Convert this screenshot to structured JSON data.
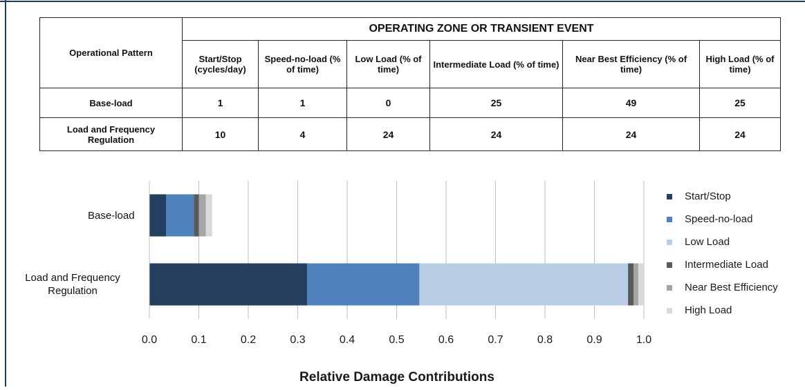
{
  "table": {
    "row_header": "Operational Pattern",
    "group_header": "OPERATING  ZONE OR TRANSIENT EVENT",
    "columns": [
      "Start/Stop (cycles/day)",
      "Speed-no-load (% of time)",
      "Low Load (% of time)",
      "Intermediate Load (% of time)",
      "Near Best Efficiency (% of time)",
      "High Load (% of time)"
    ],
    "rows": [
      [
        "Base-load",
        1,
        1,
        0,
        25,
        49,
        25
      ],
      [
        "Load and Frequency Regulation",
        10,
        4,
        24,
        24,
        24,
        24
      ]
    ]
  },
  "chart_data": {
    "type": "bar",
    "orientation": "horizontal",
    "stacked": true,
    "categories": [
      "Base-load",
      "Load and Frequency Regulation"
    ],
    "series": [
      {
        "name": "Start/Stop",
        "color": "#243f60",
        "values": [
          0.034,
          0.319
        ]
      },
      {
        "name": "Speed-no-load",
        "color": "#4f81bd",
        "values": [
          0.056,
          0.227
        ]
      },
      {
        "name": "Low Load",
        "color": "#b9cde5",
        "values": [
          0,
          0.422
        ]
      },
      {
        "name": "Intermediate Load",
        "color": "#595959",
        "values": [
          0.01,
          0.011
        ]
      },
      {
        "name": "Near Best Efficiency",
        "color": "#a6a6a6",
        "values": [
          0.014,
          0.01
        ]
      },
      {
        "name": "High Load",
        "color": "#d9d9d9",
        "values": [
          0.013,
          0.01
        ]
      }
    ],
    "xlabel": "Relative Damage Contributions",
    "xlim": [
      0,
      1
    ],
    "xticks": [
      {
        "value": 0,
        "label": "0.0"
      },
      0.1,
      0.2,
      0.3,
      0.4,
      0.5,
      0.6,
      0.7,
      0.8,
      0.9,
      {
        "value": 1,
        "label": "1.0"
      }
    ],
    "grid": true,
    "legend": "right"
  }
}
